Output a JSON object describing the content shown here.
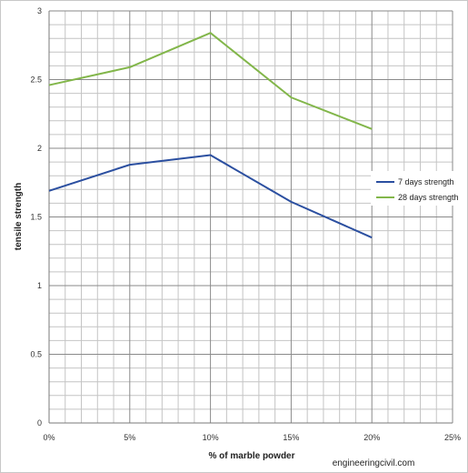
{
  "chart_data": {
    "type": "line",
    "xlabel": "% of marble powder",
    "ylabel": "tensile strength",
    "x_ticks": [
      "0%",
      "5%",
      "10%",
      "15%",
      "20%",
      "25%"
    ],
    "y_ticks": [
      "0",
      "0.5",
      "1",
      "1.5",
      "2",
      "2.5",
      "3"
    ],
    "x": [
      0,
      5,
      10,
      15,
      20
    ],
    "xlim": [
      0,
      25
    ],
    "ylim": [
      0,
      3
    ],
    "grid": true,
    "legend_position": "right",
    "series": [
      {
        "name": "7 days strength",
        "color": "#2b4fa0",
        "values": [
          1.69,
          1.88,
          1.95,
          1.61,
          1.35
        ]
      },
      {
        "name": "28 days strength",
        "color": "#82b64a",
        "values": [
          2.46,
          2.59,
          2.84,
          2.37,
          2.14
        ]
      }
    ]
  },
  "watermark": "engineeringcivil.com"
}
